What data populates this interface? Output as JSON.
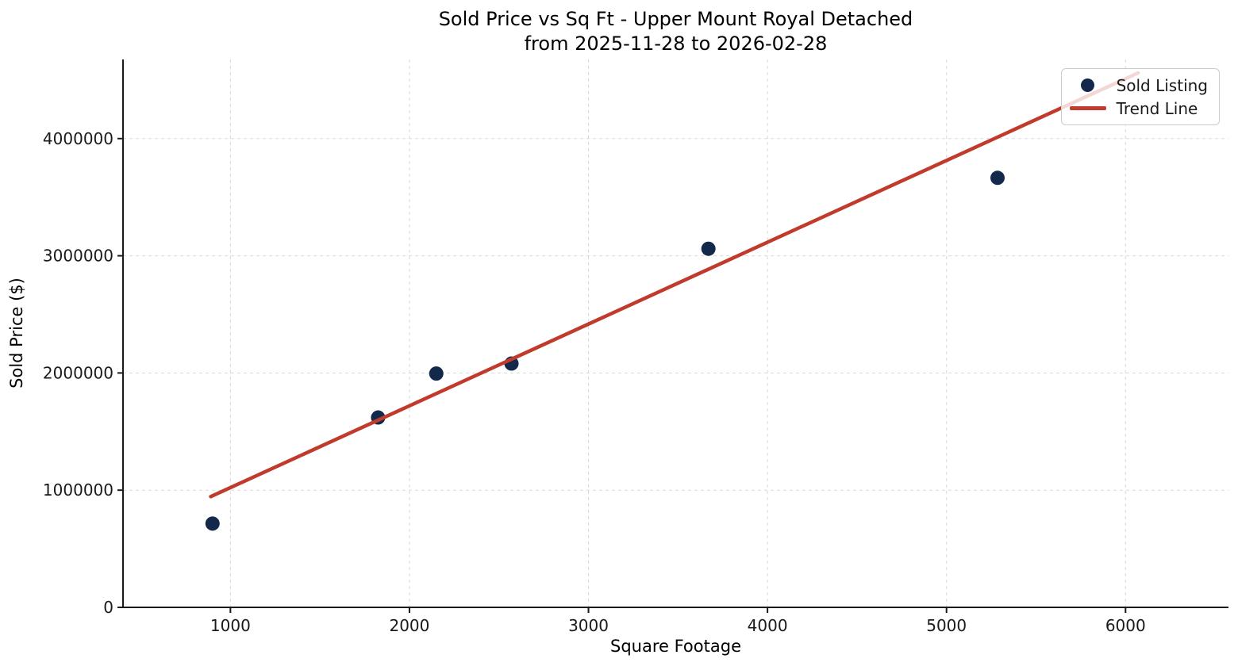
{
  "chart_data": {
    "type": "scatter",
    "title": "Sold Price vs Sq Ft - Upper Mount Royal Detached",
    "subtitle": "from 2025-11-28 to 2026-02-28",
    "xlabel": "Square Footage",
    "ylabel": "Sold Price ($)",
    "xlim": [
      400,
      6575
    ],
    "ylim": [
      0,
      4675000
    ],
    "xticks": [
      1000,
      2000,
      3000,
      4000,
      5000,
      6000
    ],
    "yticks": [
      0,
      1000000,
      2000000,
      3000000,
      4000000
    ],
    "grid": true,
    "grid_color": "#d9d9d9",
    "axis_color": "#1a1a1a",
    "legend_position": "upper right",
    "series": [
      {
        "name": "Sold Listing",
        "type": "scatter",
        "color": "#13294b",
        "marker_radius": 9,
        "points": [
          [
            900,
            715000
          ],
          [
            1825,
            1620000
          ],
          [
            2150,
            1995000
          ],
          [
            2570,
            2080000
          ],
          [
            3670,
            3060000
          ],
          [
            5285,
            3665000
          ]
        ]
      },
      {
        "name": "Trend Line",
        "type": "line",
        "color": "#c13b2c",
        "line_width": 4.5,
        "points": [
          [
            890,
            945000
          ],
          [
            6070,
            4560000
          ]
        ]
      }
    ],
    "legend": {
      "entries": [
        {
          "label": "Sold Listing",
          "marker": "dot",
          "color": "#13294b"
        },
        {
          "label": "Trend Line",
          "marker": "line",
          "color": "#c13b2c"
        }
      ]
    }
  }
}
